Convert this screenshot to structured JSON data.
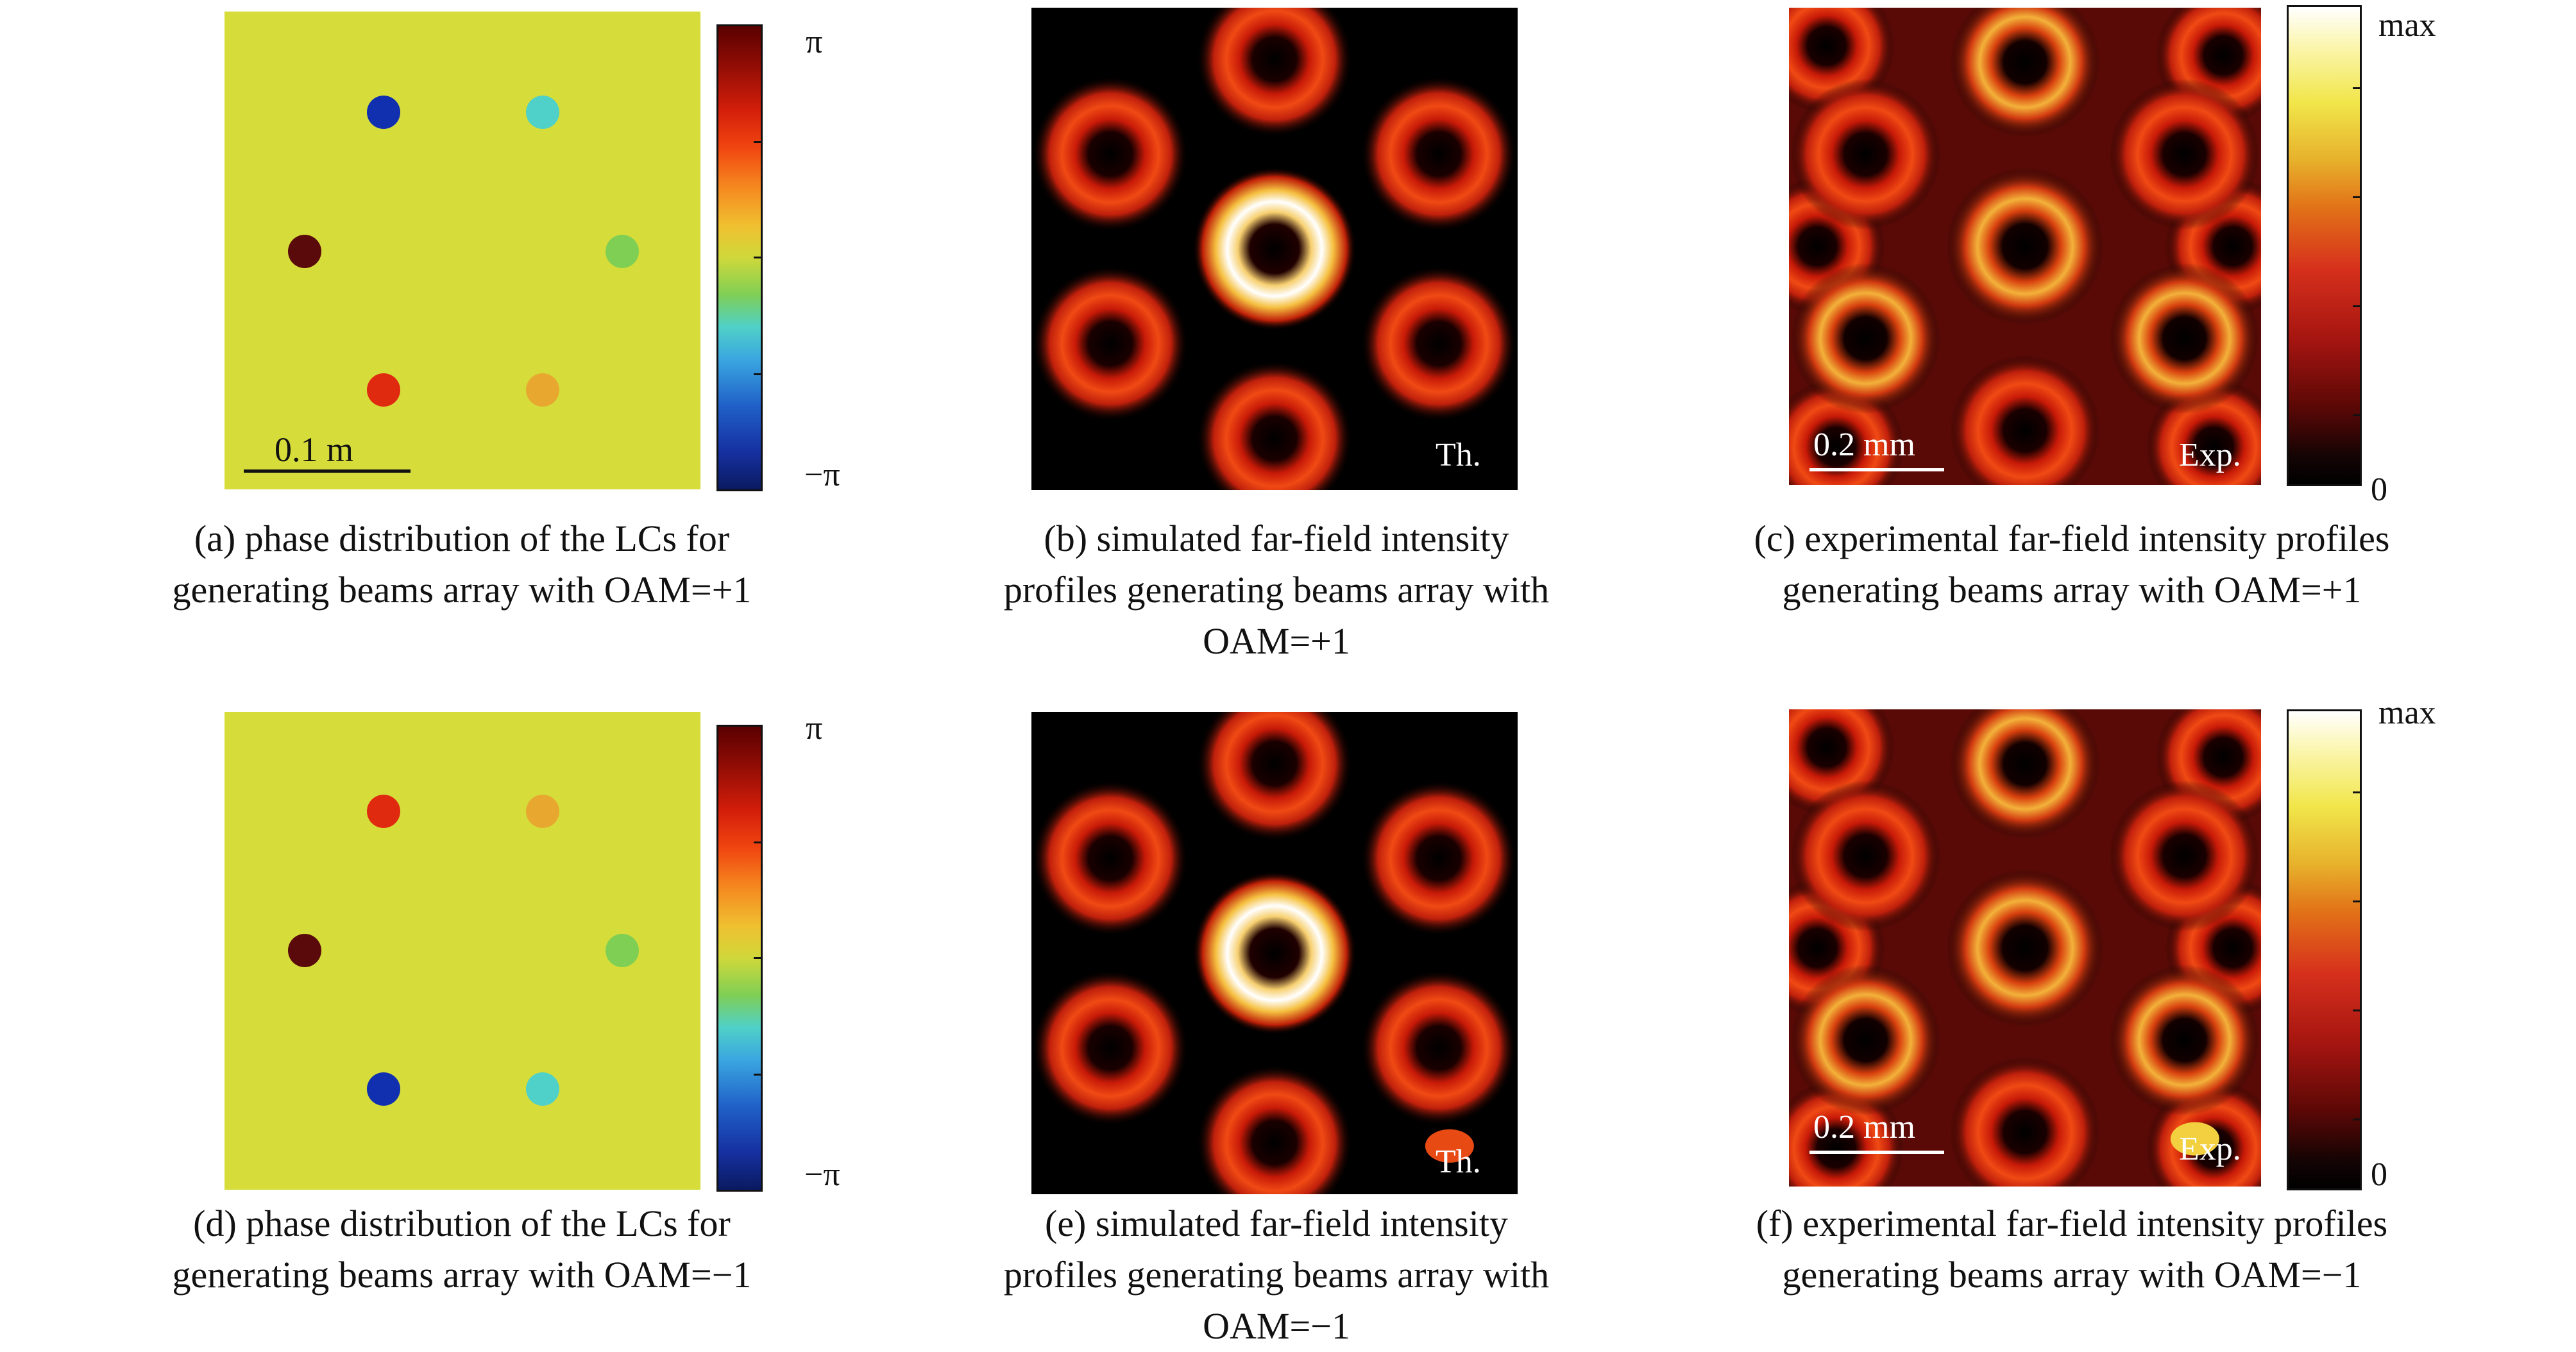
{
  "colors": {
    "phase_background": "#d6dd3a",
    "phase_dots_top": [
      "#1030b0",
      "#4fd0c8",
      "#5a0a0a",
      "#7fcf55",
      "#e02a10",
      "#e8a830"
    ],
    "phase_dots_bottom": [
      "#e02a10",
      "#e8a830",
      "#5a0a0a",
      "#7fcf55",
      "#1030b0",
      "#4fd0c8"
    ]
  },
  "phase_colorbar": {
    "top_label": "π",
    "bottom_label": "−π"
  },
  "intensity_colorbar": {
    "top_label": "max",
    "bottom_label": "0"
  },
  "panels": {
    "a": {
      "scale_label": "0.1 m",
      "caption_lines": [
        "(a) phase distribution of the LCs for",
        "generating beams array with OAM=+1"
      ]
    },
    "b": {
      "tag": "Th.",
      "caption_lines": [
        "(b) simulated far-field intensity",
        "profiles generating beams array with",
        "OAM=+1"
      ]
    },
    "c": {
      "tag": "Exp.",
      "scale_label": "0.2 mm",
      "caption_lines": [
        "(c) experimental far-field intensity profiles",
        "generating beams array with OAM=+1"
      ]
    },
    "d": {
      "caption_lines": [
        "(d) phase distribution of the LCs for",
        "generating beams array with OAM=−1"
      ]
    },
    "e": {
      "tag": "Th.",
      "caption_lines": [
        "(e) simulated far-field intensity",
        "profiles generating beams array with",
        "OAM=−1"
      ]
    },
    "f": {
      "tag": "Exp.",
      "scale_label": "0.2 mm",
      "caption_lines": [
        "(f) experimental far-field intensity profiles",
        "generating beams array with OAM=−1"
      ]
    }
  }
}
